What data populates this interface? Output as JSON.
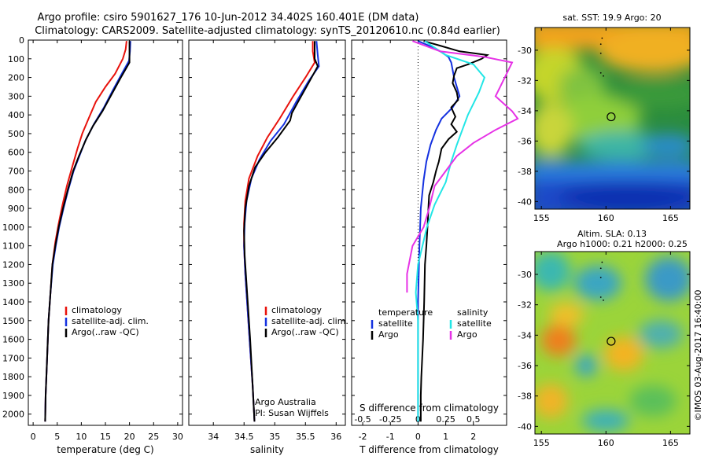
{
  "header": {
    "line1": "Argo profile: csiro 5901627_176 10-Jun-2012 34.402S 160.401E (DM data)",
    "line2": "Climatology: CARS2009. Satellite-adjusted climatology: synTS_20120610.nc (0.84d earlier)"
  },
  "credit": "©IMOS 03-Aug-2017 16:40:00",
  "colors": {
    "clim": "#e8120c",
    "sat": "#1431e0",
    "argo": "#000000",
    "s_sat": "#22e6e6",
    "s_argo": "#e632e6"
  },
  "chart_data": [
    {
      "type": "line",
      "xlabel": "temperature (deg C)",
      "xlim": [
        -1,
        31
      ],
      "xticks": [
        0,
        5,
        10,
        15,
        20,
        25,
        30
      ],
      "ylim": [
        2060,
        0
      ],
      "yticks": [
        0,
        100,
        200,
        300,
        400,
        500,
        600,
        700,
        800,
        900,
        1000,
        1100,
        1200,
        1300,
        1400,
        1500,
        1600,
        1700,
        1800,
        1900,
        2000
      ],
      "legend": [
        "climatology",
        "satellite-adj. clim.",
        "Argo(..raw -QC)"
      ],
      "series": [
        {
          "name": "climatology",
          "color": "#e8120c",
          "points": [
            [
              19.4,
              5
            ],
            [
              19.2,
              50
            ],
            [
              18.6,
              100
            ],
            [
              17,
              180
            ],
            [
              15,
              250
            ],
            [
              13,
              330
            ],
            [
              11.5,
              420
            ],
            [
              10.2,
              500
            ],
            [
              9.2,
              580
            ],
            [
              8.1,
              680
            ],
            [
              7,
              780
            ],
            [
              6.1,
              880
            ],
            [
              5.3,
              980
            ],
            [
              4.6,
              1080
            ],
            [
              4,
              1200
            ],
            [
              3.6,
              1350
            ],
            [
              3.2,
              1500
            ],
            [
              2.9,
              1700
            ],
            [
              2.6,
              1900
            ],
            [
              2.5,
              2040
            ]
          ]
        },
        {
          "name": "satellite-adj. clim.",
          "color": "#1431e0",
          "points": [
            [
              20.2,
              5
            ],
            [
              20.1,
              60
            ],
            [
              19.9,
              110
            ],
            [
              18.4,
              180
            ],
            [
              16.5,
              270
            ],
            [
              14.7,
              360
            ],
            [
              12.6,
              450
            ],
            [
              10.8,
              540
            ],
            [
              9.6,
              620
            ],
            [
              8.4,
              700
            ],
            [
              7.3,
              800
            ],
            [
              6.3,
              900
            ],
            [
              5.4,
              1000
            ],
            [
              4.7,
              1100
            ],
            [
              4.1,
              1200
            ],
            [
              3.6,
              1350
            ],
            [
              3.2,
              1500
            ],
            [
              2.9,
              1700
            ],
            [
              2.6,
              1900
            ],
            [
              2.5,
              2040
            ]
          ]
        },
        {
          "name": "Argo(..raw -QC)",
          "color": "#000000",
          "points": [
            [
              20,
              5
            ],
            [
              20,
              70
            ],
            [
              20,
              120
            ],
            [
              18.2,
              200
            ],
            [
              16.5,
              280
            ],
            [
              14.4,
              380
            ],
            [
              12.4,
              460
            ],
            [
              11,
              530
            ],
            [
              9.5,
              620
            ],
            [
              8.3,
              700
            ],
            [
              7.2,
              800
            ],
            [
              6.2,
              900
            ],
            [
              5.3,
              1000
            ],
            [
              4.6,
              1100
            ],
            [
              4,
              1200
            ],
            [
              3.6,
              1350
            ],
            [
              3.2,
              1500
            ],
            [
              2.9,
              1700
            ],
            [
              2.6,
              1900
            ],
            [
              2.5,
              2040
            ]
          ]
        }
      ]
    },
    {
      "type": "line",
      "xlabel": "salinity",
      "xlim": [
        33.6,
        36.15
      ],
      "xticks": [
        34,
        34.5,
        35,
        35.5,
        36
      ],
      "ylim": [
        2060,
        0
      ],
      "legend": [
        "climatology",
        "satellite-adj. clim.",
        "Argo(..raw -QC)"
      ],
      "annotation": [
        "Argo Australia",
        "PI: Susan Wijffels"
      ],
      "series": [
        {
          "name": "climatology",
          "color": "#e8120c",
          "points": [
            [
              35.62,
              5
            ],
            [
              35.62,
              60
            ],
            [
              35.65,
              120
            ],
            [
              35.5,
              200
            ],
            [
              35.3,
              300
            ],
            [
              35.08,
              420
            ],
            [
              34.88,
              520
            ],
            [
              34.72,
              620
            ],
            [
              34.58,
              740
            ],
            [
              34.52,
              860
            ],
            [
              34.5,
              980
            ],
            [
              34.5,
              1100
            ],
            [
              34.52,
              1250
            ],
            [
              34.56,
              1450
            ],
            [
              34.6,
              1650
            ],
            [
              34.64,
              1850
            ],
            [
              34.67,
              2040
            ]
          ]
        },
        {
          "name": "satellite-adj. clim.",
          "color": "#1431e0",
          "points": [
            [
              35.68,
              5
            ],
            [
              35.7,
              80
            ],
            [
              35.72,
              140
            ],
            [
              35.55,
              220
            ],
            [
              35.35,
              330
            ],
            [
              35.15,
              450
            ],
            [
              34.93,
              540
            ],
            [
              34.75,
              640
            ],
            [
              34.62,
              740
            ],
            [
              34.54,
              860
            ],
            [
              34.51,
              980
            ],
            [
              34.5,
              1100
            ],
            [
              34.52,
              1250
            ],
            [
              34.56,
              1450
            ],
            [
              34.6,
              1650
            ],
            [
              34.64,
              1850
            ],
            [
              34.67,
              2040
            ]
          ]
        },
        {
          "name": "Argo(..raw -QC)",
          "color": "#000000",
          "points": [
            [
              35.65,
              5
            ],
            [
              35.65,
              100
            ],
            [
              35.7,
              140
            ],
            [
              35.55,
              230
            ],
            [
              35.38,
              330
            ],
            [
              35.28,
              390
            ],
            [
              35.25,
              430
            ],
            [
              35.05,
              520
            ],
            [
              34.85,
              600
            ],
            [
              34.68,
              680
            ],
            [
              34.58,
              780
            ],
            [
              34.52,
              900
            ],
            [
              34.5,
              1020
            ],
            [
              34.51,
              1150
            ],
            [
              34.55,
              1350
            ],
            [
              34.6,
              1600
            ],
            [
              34.64,
              1850
            ],
            [
              34.67,
              2040
            ]
          ]
        }
      ]
    },
    {
      "type": "line",
      "xlabel": "T difference from climatology",
      "x2label": "S difference from climatology",
      "xlim": [
        -2.4,
        3.2
      ],
      "xticks": [
        -2,
        -1,
        0,
        1,
        2
      ],
      "x2ticks": [
        -0.5,
        -0.25,
        0,
        0.25,
        0.5
      ],
      "ylim": [
        2060,
        0
      ],
      "legend_temperature": [
        "temperature",
        "satellite",
        "Argo"
      ],
      "legend_salinity": [
        "salinity",
        "satellite",
        "Argo"
      ],
      "series": [
        {
          "name": "satellite",
          "group": "temperature",
          "color": "#1431e0",
          "points": [
            [
              0,
              5
            ],
            [
              0.4,
              30
            ],
            [
              0.8,
              60
            ],
            [
              1.1,
              90
            ],
            [
              1.2,
              120
            ],
            [
              1.3,
              200
            ],
            [
              1.5,
              300
            ],
            [
              1.25,
              360
            ],
            [
              0.85,
              420
            ],
            [
              0.65,
              480
            ],
            [
              0.45,
              560
            ],
            [
              0.3,
              650
            ],
            [
              0.2,
              750
            ],
            [
              0.1,
              900
            ],
            [
              0.05,
              1100
            ],
            [
              0,
              1400
            ],
            [
              0,
              2040
            ]
          ]
        },
        {
          "name": "Argo",
          "group": "temperature",
          "color": "#000000",
          "points": [
            [
              0.2,
              5
            ],
            [
              0.8,
              30
            ],
            [
              1.5,
              60
            ],
            [
              2.5,
              80
            ],
            [
              2.3,
              100
            ],
            [
              1.8,
              130
            ],
            [
              1.4,
              150
            ],
            [
              1.3,
              190
            ],
            [
              1.25,
              230
            ],
            [
              1.4,
              280
            ],
            [
              1.45,
              320
            ],
            [
              1.2,
              360
            ],
            [
              1.35,
              410
            ],
            [
              1.2,
              450
            ],
            [
              1.4,
              490
            ],
            [
              1.1,
              530
            ],
            [
              0.85,
              580
            ],
            [
              0.75,
              650
            ],
            [
              0.65,
              700
            ],
            [
              0.55,
              760
            ],
            [
              0.4,
              830
            ],
            [
              0.38,
              880
            ],
            [
              0.35,
              980
            ],
            [
              0.3,
              1100
            ],
            [
              0.25,
              1200
            ],
            [
              0.22,
              1400
            ],
            [
              0.18,
              1600
            ],
            [
              0.12,
              1800
            ],
            [
              0.1,
              1900
            ],
            [
              0.1,
              2040
            ]
          ]
        },
        {
          "name": "satellite",
          "group": "salinity",
          "color": "#22e6e6",
          "points": [
            [
              0.06,
              5
            ],
            [
              0.25,
              80
            ],
            [
              0.5,
              130
            ],
            [
              0.6,
              200
            ],
            [
              0.55,
              280
            ],
            [
              0.45,
              400
            ],
            [
              0.4,
              480
            ],
            [
              0.35,
              560
            ],
            [
              0.3,
              650
            ],
            [
              0.25,
              760
            ],
            [
              0.15,
              880
            ],
            [
              0.08,
              1000
            ],
            [
              0,
              1200
            ],
            [
              -0.02,
              1350
            ],
            [
              0,
              1500
            ],
            [
              0,
              2040
            ]
          ]
        },
        {
          "name": "Argo",
          "group": "salinity",
          "color": "#e632e6",
          "points": [
            [
              -0.05,
              5
            ],
            [
              0.2,
              60
            ],
            [
              0.6,
              90
            ],
            [
              0.85,
              120
            ],
            [
              0.8,
              180
            ],
            [
              0.75,
              240
            ],
            [
              0.7,
              300
            ],
            [
              0.85,
              380
            ],
            [
              0.9,
              420
            ],
            [
              0.7,
              480
            ],
            [
              0.5,
              550
            ],
            [
              0.35,
              620
            ],
            [
              0.25,
              700
            ],
            [
              0.15,
              780
            ],
            [
              0.1,
              900
            ],
            [
              0.05,
              1000
            ],
            [
              -0.05,
              1100
            ],
            [
              -0.1,
              1250
            ],
            [
              -0.1,
              1350
            ]
          ]
        }
      ]
    },
    {
      "type": "heatmap",
      "title": "sat. SST: 19.9 Argo: 20",
      "xticks": [
        155,
        160,
        165
      ],
      "yticks": [
        -30,
        -32,
        -34,
        -36,
        -38,
        -40
      ],
      "xlim": [
        154.5,
        166.5
      ],
      "ylim": [
        -40.5,
        -28.5
      ],
      "marker": [
        160.4,
        -34.4
      ]
    },
    {
      "type": "heatmap",
      "title": "Altim. SLA: 0.13",
      "subtitle": "Argo h1000: 0.21 h2000: 0.25",
      "xticks": [
        155,
        160,
        165
      ],
      "yticks": [
        -30,
        -32,
        -34,
        -36,
        -38,
        -40
      ],
      "xlim": [
        154.5,
        166.5
      ],
      "ylim": [
        -40.5,
        -28.5
      ],
      "marker": [
        160.4,
        -34.4
      ]
    }
  ]
}
